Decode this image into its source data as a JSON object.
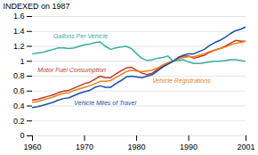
{
  "chart_data": {
    "type": "line",
    "ylabel": "INDEXED on 1987",
    "x": [
      1960,
      1961,
      1962,
      1963,
      1964,
      1965,
      1966,
      1967,
      1968,
      1969,
      1970,
      1971,
      1972,
      1973,
      1974,
      1975,
      1976,
      1977,
      1978,
      1979,
      1980,
      1981,
      1982,
      1983,
      1984,
      1985,
      1986,
      1987,
      1988,
      1989,
      1990,
      1991,
      1992,
      1993,
      1994,
      1995,
      1996,
      1997,
      1998,
      1999,
      2000,
      2001
    ],
    "series": [
      {
        "name": "Gallons Per Vehicle",
        "color": "#3aada0",
        "values": [
          1.1,
          1.11,
          1.12,
          1.14,
          1.16,
          1.18,
          1.18,
          1.17,
          1.18,
          1.2,
          1.22,
          1.23,
          1.25,
          1.26,
          1.2,
          1.16,
          1.18,
          1.19,
          1.2,
          1.17,
          1.1,
          1.04,
          1.01,
          1.02,
          1.04,
          1.05,
          1.07,
          1.0,
          1.01,
          1.02,
          0.99,
          0.97,
          0.97,
          0.98,
          0.99,
          1.0,
          1.0,
          1.01,
          1.02,
          1.02,
          1.01,
          1.0
        ]
      },
      {
        "name": "Motor Fuel Consumption",
        "color": "#c0392b",
        "values": [
          0.48,
          0.49,
          0.51,
          0.53,
          0.55,
          0.58,
          0.6,
          0.61,
          0.64,
          0.67,
          0.7,
          0.72,
          0.76,
          0.8,
          0.78,
          0.78,
          0.83,
          0.87,
          0.91,
          0.92,
          0.88,
          0.84,
          0.82,
          0.84,
          0.89,
          0.93,
          0.97,
          1.0,
          1.05,
          1.07,
          1.07,
          1.04,
          1.06,
          1.08,
          1.12,
          1.15,
          1.17,
          1.2,
          1.24,
          1.28,
          1.27,
          1.27
        ]
      },
      {
        "name": "Vehicle Registrations",
        "color": "#e8821a",
        "values": [
          0.45,
          0.46,
          0.48,
          0.5,
          0.52,
          0.55,
          0.57,
          0.58,
          0.61,
          0.63,
          0.65,
          0.67,
          0.7,
          0.73,
          0.73,
          0.74,
          0.78,
          0.82,
          0.86,
          0.88,
          0.87,
          0.86,
          0.87,
          0.88,
          0.91,
          0.95,
          0.98,
          1.0,
          1.03,
          1.05,
          1.06,
          1.06,
          1.08,
          1.1,
          1.13,
          1.15,
          1.17,
          1.19,
          1.22,
          1.24,
          1.25,
          1.27
        ]
      },
      {
        "name": "Vehicle Miles of Travel",
        "color": "#1a4faa",
        "values": [
          0.38,
          0.39,
          0.41,
          0.43,
          0.45,
          0.48,
          0.5,
          0.51,
          0.54,
          0.57,
          0.59,
          0.61,
          0.65,
          0.67,
          0.65,
          0.65,
          0.7,
          0.74,
          0.79,
          0.8,
          0.79,
          0.78,
          0.8,
          0.82,
          0.87,
          0.92,
          0.96,
          1.0,
          1.05,
          1.08,
          1.1,
          1.1,
          1.13,
          1.16,
          1.21,
          1.25,
          1.28,
          1.32,
          1.37,
          1.41,
          1.43,
          1.46
        ]
      }
    ],
    "xlim": [
      1960,
      2001
    ],
    "ylim": [
      0,
      1.6
    ],
    "xticks": [
      1960,
      1970,
      1980,
      1990,
      2001
    ],
    "yticks": [
      0,
      0.2,
      0.4,
      0.6,
      0.8,
      1.0,
      1.2,
      1.4,
      1.6
    ],
    "grid": true
  }
}
